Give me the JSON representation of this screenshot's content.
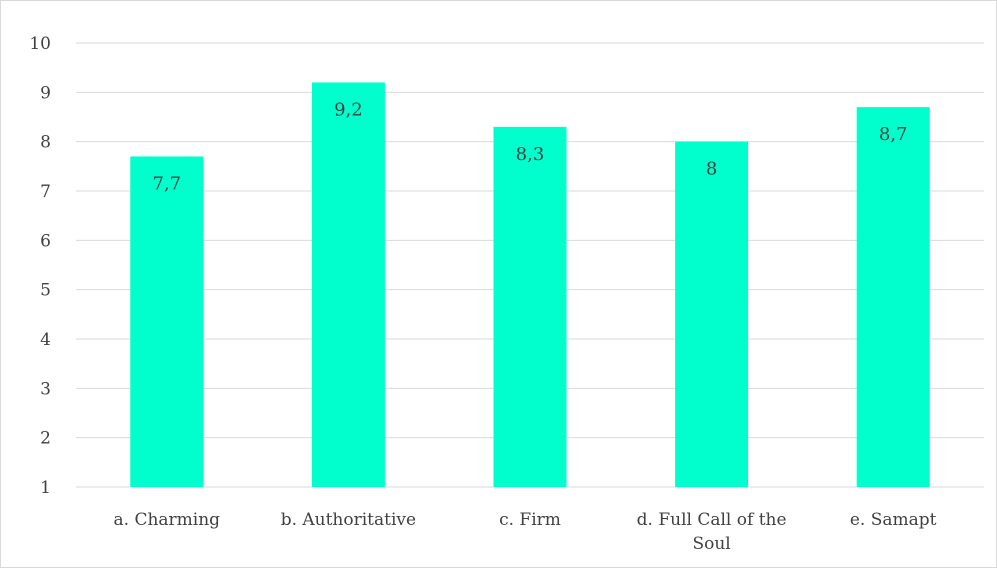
{
  "chart_data": {
    "type": "bar",
    "categories": [
      "a. Charming",
      "b. Authoritative",
      "c. Firm",
      "d. Full Call of the Soul",
      "e. Samapt"
    ],
    "category_lines": [
      [
        "a. Charming"
      ],
      [
        "b. Authoritative"
      ],
      [
        "c. Firm"
      ],
      [
        "d. Full Call of the",
        "Soul"
      ],
      [
        "e. Samapt"
      ]
    ],
    "values": [
      7.7,
      9.2,
      8.3,
      8,
      8.7
    ],
    "data_labels": [
      "7,7",
      "9,2",
      "8,3",
      "8",
      "8,7"
    ],
    "ylim": [
      1,
      10
    ],
    "yticks": [
      1,
      2,
      3,
      4,
      5,
      6,
      7,
      8,
      9,
      10
    ],
    "title": "",
    "xlabel": "",
    "ylabel": "",
    "grid": true,
    "legend": "none",
    "colors": {
      "bar": "#00FFCC",
      "grid": "#d9d9d9",
      "text": "#404040"
    }
  }
}
